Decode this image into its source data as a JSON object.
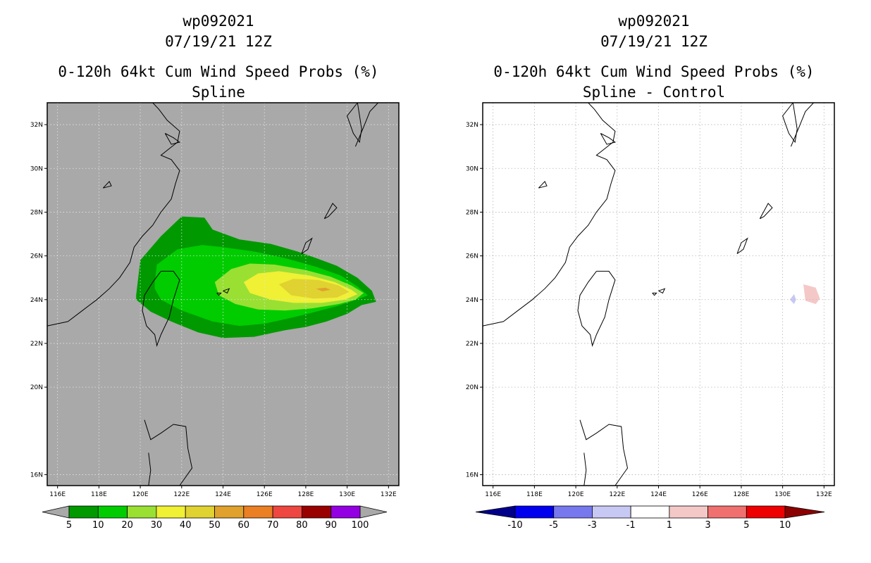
{
  "chart_data": [
    {
      "type": "filled_contour_map",
      "title": [
        "wp092021",
        "07/19/21 12Z",
        "0-120h 64kt Cum Wind Speed Probs (%)",
        "Spline"
      ],
      "xlabel": "",
      "ylabel": "",
      "lon_range": [
        115.5,
        132.5
      ],
      "lat_range": [
        15.5,
        33
      ],
      "x_ticks": [
        "116E",
        "118E",
        "120E",
        "122E",
        "124E",
        "126E",
        "128E",
        "130E",
        "132E"
      ],
      "y_ticks": [
        "16N",
        "20N",
        "22N",
        "24N",
        "26N",
        "28N",
        "30N",
        "32N"
      ],
      "background_color": "#a9a9a9",
      "grid": true,
      "colorbar": {
        "levels": [
          "5",
          "10",
          "20",
          "30",
          "40",
          "50",
          "60",
          "70",
          "80",
          "90",
          "100"
        ],
        "colors": [
          "#009900",
          "#00cc00",
          "#99e033",
          "#f0f034",
          "#e0d231",
          "#e0a22c",
          "#ea7f23",
          "#ee4640",
          "#990000",
          "#9300e1"
        ],
        "end_colors": [
          "#a9a9a9",
          "#a9a9a9"
        ]
      },
      "contours": [
        {
          "level": "5",
          "color": "#009900",
          "points": [
            [
              119.8,
              24.2
            ],
            [
              120.0,
              25.8
            ],
            [
              121.0,
              26.9
            ],
            [
              122.0,
              27.8
            ],
            [
              123.1,
              27.75
            ],
            [
              123.5,
              27.2
            ],
            [
              124.8,
              26.75
            ],
            [
              126.3,
              26.55
            ],
            [
              127.6,
              26.2
            ],
            [
              128.5,
              25.9
            ],
            [
              129.5,
              25.55
            ],
            [
              130.5,
              25.0
            ],
            [
              131.2,
              24.4
            ],
            [
              131.4,
              23.9
            ],
            [
              130.7,
              23.75
            ],
            [
              130.0,
              23.35
            ],
            [
              129.0,
              23.0
            ],
            [
              128.0,
              22.75
            ],
            [
              127.0,
              22.6
            ],
            [
              125.5,
              22.3
            ],
            [
              124.0,
              22.25
            ],
            [
              122.8,
              22.5
            ],
            [
              121.5,
              23.0
            ],
            [
              120.5,
              23.45
            ],
            [
              119.8,
              24.0
            ]
          ]
        },
        {
          "level": "10",
          "color": "#00cc00",
          "points": [
            [
              120.7,
              24.8
            ],
            [
              120.8,
              25.6
            ],
            [
              121.8,
              26.3
            ],
            [
              123.0,
              26.5
            ],
            [
              124.0,
              26.4
            ],
            [
              125.5,
              26.2
            ],
            [
              127.0,
              25.9
            ],
            [
              128.5,
              25.5
            ],
            [
              129.7,
              25.1
            ],
            [
              130.5,
              24.6
            ],
            [
              131.0,
              24.2
            ],
            [
              130.3,
              23.95
            ],
            [
              129.5,
              23.7
            ],
            [
              128.3,
              23.4
            ],
            [
              127.2,
              23.15
            ],
            [
              126.0,
              22.9
            ],
            [
              124.8,
              22.8
            ],
            [
              123.5,
              23.0
            ],
            [
              122.0,
              23.5
            ],
            [
              121.0,
              24.0
            ],
            [
              120.7,
              24.5
            ]
          ]
        },
        {
          "level": "20",
          "color": "#99e033",
          "points": [
            [
              123.6,
              24.8
            ],
            [
              124.4,
              25.4
            ],
            [
              125.3,
              25.65
            ],
            [
              126.5,
              25.6
            ],
            [
              128.0,
              25.35
            ],
            [
              129.2,
              25.05
            ],
            [
              130.2,
              24.65
            ],
            [
              130.8,
              24.3
            ],
            [
              130.4,
              24.0
            ],
            [
              129.6,
              23.8
            ],
            [
              128.3,
              23.6
            ],
            [
              127.0,
              23.5
            ],
            [
              125.7,
              23.55
            ],
            [
              124.6,
              23.8
            ],
            [
              123.8,
              24.2
            ]
          ]
        },
        {
          "level": "30",
          "color": "#f0f034",
          "points": [
            [
              125.0,
              24.8
            ],
            [
              125.7,
              25.2
            ],
            [
              126.7,
              25.3
            ],
            [
              128.2,
              25.1
            ],
            [
              129.4,
              24.8
            ],
            [
              130.2,
              24.45
            ],
            [
              130.5,
              24.25
            ],
            [
              129.9,
              24.0
            ],
            [
              128.8,
              23.85
            ],
            [
              127.4,
              23.85
            ],
            [
              126.3,
              24.0
            ],
            [
              125.3,
              24.3
            ]
          ]
        },
        {
          "level": "40",
          "color": "#e0d231",
          "points": [
            [
              126.7,
              24.7
            ],
            [
              127.4,
              24.95
            ],
            [
              128.6,
              24.9
            ],
            [
              129.6,
              24.65
            ],
            [
              130.1,
              24.35
            ],
            [
              129.5,
              24.1
            ],
            [
              128.4,
              24.05
            ],
            [
              127.3,
              24.2
            ]
          ]
        },
        {
          "level": "50",
          "color": "#e0a22c",
          "points": [
            [
              128.5,
              24.5
            ],
            [
              128.95,
              24.55
            ],
            [
              129.2,
              24.45
            ],
            [
              128.8,
              24.38
            ]
          ]
        }
      ]
    },
    {
      "type": "filled_contour_map",
      "title": [
        "wp092021",
        "07/19/21 12Z",
        "0-120h 64kt Cum Wind Speed Probs (%)",
        "Spline - Control"
      ],
      "xlabel": "",
      "ylabel": "",
      "lon_range": [
        115.5,
        132.5
      ],
      "lat_range": [
        15.5,
        33
      ],
      "x_ticks": [
        "116E",
        "118E",
        "120E",
        "122E",
        "124E",
        "126E",
        "128E",
        "130E",
        "132E"
      ],
      "y_ticks": [
        "16N",
        "20N",
        "22N",
        "24N",
        "26N",
        "28N",
        "30N",
        "32N"
      ],
      "background_color": "#ffffff",
      "grid": true,
      "colorbar": {
        "levels": [
          "-10",
          "-5",
          "-3",
          "-1",
          "1",
          "3",
          "5",
          "10"
        ],
        "colors": [
          "#0000ee",
          "#7777ee",
          "#c8c8f5",
          "#ffffff",
          "#f5c8c8",
          "#f07070",
          "#ee0000"
        ],
        "end_colors": [
          "#00008b",
          "#8b0000"
        ]
      },
      "contours": [
        {
          "level": "-1",
          "color": "#c8c8f5",
          "points": [
            [
              130.35,
              24.0
            ],
            [
              130.55,
              24.25
            ],
            [
              130.65,
              24.0
            ],
            [
              130.55,
              23.8
            ]
          ]
        },
        {
          "level": "1",
          "color": "#f5c8c8",
          "points": [
            [
              131.0,
              24.7
            ],
            [
              131.6,
              24.55
            ],
            [
              131.8,
              24.05
            ],
            [
              131.6,
              23.8
            ],
            [
              131.1,
              23.95
            ]
          ]
        }
      ]
    }
  ]
}
